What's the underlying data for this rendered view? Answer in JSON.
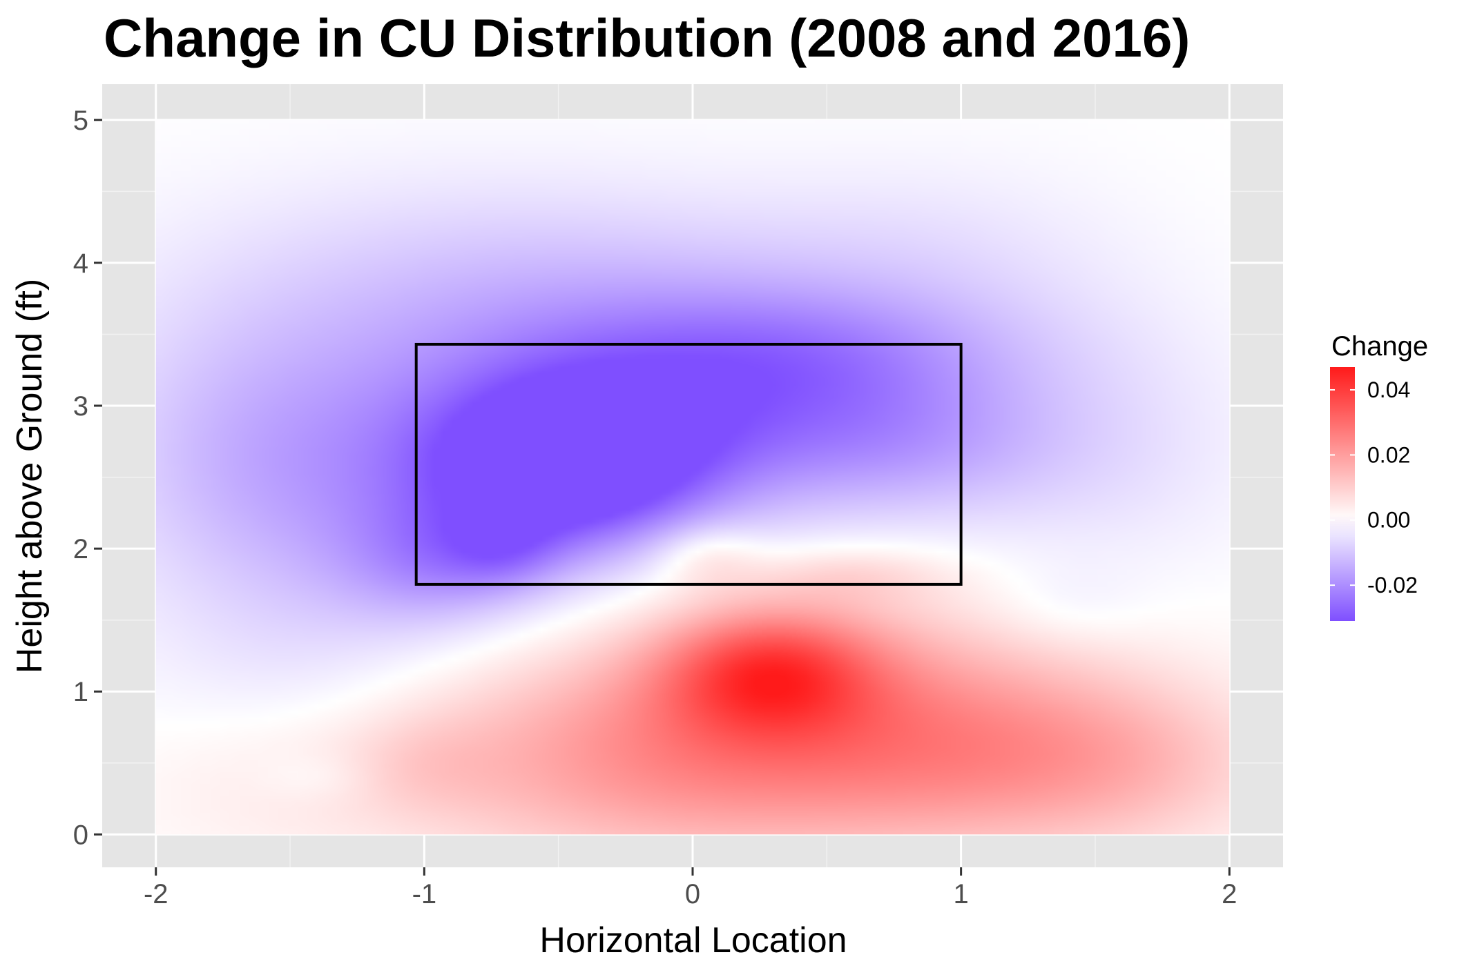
{
  "chart_data": {
    "type": "heatmap",
    "title": "Change in CU Distribution (2008 and 2016)",
    "xlabel": "Horizontal Location",
    "ylabel": "Height above Ground (ft)",
    "xlim": [
      -2.2,
      2.2
    ],
    "ylim": [
      -0.23,
      5.25
    ],
    "data_extent": {
      "x": [
        -2,
        2
      ],
      "y": [
        0,
        5
      ]
    },
    "x_ticks": [
      {
        "value": -2,
        "label": "-2"
      },
      {
        "value": -1,
        "label": "-1"
      },
      {
        "value": 0,
        "label": "0"
      },
      {
        "value": 1,
        "label": "1"
      },
      {
        "value": 2,
        "label": "2"
      }
    ],
    "y_ticks": [
      {
        "value": 0,
        "label": "0"
      },
      {
        "value": 1,
        "label": "1"
      },
      {
        "value": 2,
        "label": "2"
      },
      {
        "value": 3,
        "label": "3"
      },
      {
        "value": 4,
        "label": "4"
      },
      {
        "value": 5,
        "label": "5"
      }
    ],
    "strike_zone": {
      "x": [
        -1.03,
        1.0
      ],
      "y": [
        1.75,
        3.43
      ]
    },
    "color_scale": {
      "low_color": "#7f4fff",
      "mid_color": "#ffffff",
      "high_color": "#ff1a1a",
      "min": -0.031,
      "max": 0.047
    },
    "legend": {
      "title": "Change",
      "position": "right",
      "ticks": [
        {
          "value": 0.04,
          "label": "0.04"
        },
        {
          "value": 0.02,
          "label": "0.02"
        },
        {
          "value": 0.0,
          "label": "0.00"
        },
        {
          "value": -0.02,
          "label": "-0.02"
        }
      ]
    },
    "features": [
      {
        "x": 0.28,
        "y": 1.15,
        "sx": 0.28,
        "sy": 0.3,
        "value": 0.026
      },
      {
        "x": 0.5,
        "y": 0.95,
        "sx": 0.55,
        "sy": 0.55,
        "value": 0.014
      },
      {
        "x": 0.45,
        "y": 0.45,
        "sx": 0.9,
        "sy": 0.5,
        "value": 0.013
      },
      {
        "x": 1.25,
        "y": 0.6,
        "sx": 0.45,
        "sy": 0.45,
        "value": 0.01
      },
      {
        "x": -0.35,
        "y": 0.6,
        "sx": 0.55,
        "sy": 0.55,
        "value": 0.01
      },
      {
        "x": 1.7,
        "y": 0.5,
        "sx": 0.35,
        "sy": 0.4,
        "value": 0.005
      },
      {
        "x": 0.05,
        "y": 1.95,
        "sx": 0.14,
        "sy": 0.16,
        "value": 0.008
      },
      {
        "x": 0.6,
        "y": 1.82,
        "sx": 0.25,
        "sy": 0.14,
        "value": 0.006
      },
      {
        "x": -1.0,
        "y": 0.5,
        "sx": 0.2,
        "sy": 0.25,
        "value": 0.004
      },
      {
        "x": -1.55,
        "y": 0.35,
        "sx": 0.4,
        "sy": 0.4,
        "value": 0.003
      },
      {
        "x": -0.45,
        "y": 2.6,
        "sx": 0.35,
        "sy": 0.4,
        "value": -0.03
      },
      {
        "x": -0.55,
        "y": 2.75,
        "sx": 0.7,
        "sy": 0.6,
        "value": -0.011
      },
      {
        "x": 0.25,
        "y": 2.95,
        "sx": 0.5,
        "sy": 0.45,
        "value": -0.013
      },
      {
        "x": 0.85,
        "y": 2.75,
        "sx": 0.4,
        "sy": 0.4,
        "value": -0.01
      },
      {
        "x": -1.15,
        "y": 2.3,
        "sx": 0.6,
        "sy": 0.7,
        "value": -0.01
      },
      {
        "x": -0.95,
        "y": 1.9,
        "sx": 0.25,
        "sy": 0.3,
        "value": -0.01
      },
      {
        "x": -0.7,
        "y": 2.0,
        "sx": 0.15,
        "sy": 0.2,
        "value": -0.008
      },
      {
        "x": -0.3,
        "y": 3.6,
        "sx": 0.9,
        "sy": 0.5,
        "value": -0.009
      },
      {
        "x": 0.4,
        "y": 3.4,
        "sx": 0.6,
        "sy": 0.3,
        "value": -0.008
      },
      {
        "x": -1.7,
        "y": 2.8,
        "sx": 0.4,
        "sy": 0.7,
        "value": -0.006
      },
      {
        "x": 1.55,
        "y": 2.7,
        "sx": 0.4,
        "sy": 0.6,
        "value": -0.005
      },
      {
        "x": 0.9,
        "y": 4.0,
        "sx": 0.5,
        "sy": 0.5,
        "value": -0.004
      },
      {
        "x": -0.8,
        "y": 4.1,
        "sx": 0.8,
        "sy": 0.5,
        "value": -0.004
      },
      {
        "x": -1.5,
        "y": 1.2,
        "sx": 0.4,
        "sy": 0.5,
        "value": -0.003
      },
      {
        "x": -1.4,
        "y": 0.4,
        "sx": 0.15,
        "sy": 0.12,
        "value": -0.003
      },
      {
        "x": 1.4,
        "y": 1.6,
        "sx": 0.2,
        "sy": 0.2,
        "value": -0.003
      }
    ]
  }
}
